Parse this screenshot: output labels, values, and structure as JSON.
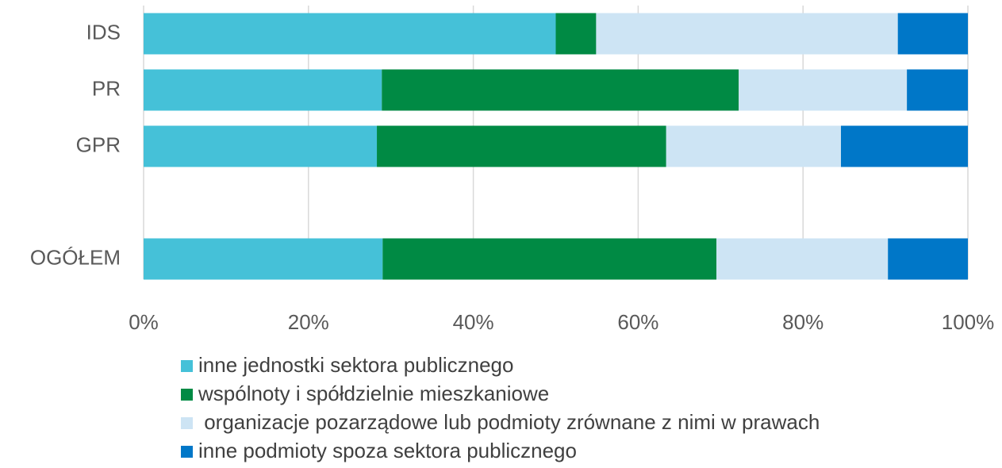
{
  "chart_data": {
    "type": "stacked_barh",
    "categories": [
      "IDS",
      "PR",
      "GPR",
      null,
      "OGÓŁEM"
    ],
    "series": [
      {
        "name": "inne jednostki sektora publicznego",
        "color": "#45c1d8",
        "values": [
          50,
          28.9,
          28.3,
          null,
          29.0
        ]
      },
      {
        "name": "wspólnoty i spółdzielnie mieszkaniowe",
        "color": "#008a44",
        "values": [
          4.9,
          43.3,
          35.1,
          null,
          40.5
        ]
      },
      {
        "name": " organizacje pozarządowe lub podmioty zrównane z nimi w prawach",
        "color": "#cde4f4",
        "values": [
          36.6,
          20.4,
          21.2,
          null,
          20.8
        ]
      },
      {
        "name": "inne podmioty spoza sektora publicznego",
        "color": "#0077c8",
        "values": [
          8.5,
          7.4,
          15.4,
          null,
          9.7
        ]
      }
    ],
    "xlim": [
      0,
      100
    ],
    "xticks": [
      {
        "value": 0,
        "label": "0%"
      },
      {
        "value": 20,
        "label": "20%"
      },
      {
        "value": 40,
        "label": "40%"
      },
      {
        "value": 60,
        "label": "60%"
      },
      {
        "value": 80,
        "label": "80%"
      },
      {
        "value": 100,
        "label": "100%"
      }
    ],
    "grid": true
  }
}
